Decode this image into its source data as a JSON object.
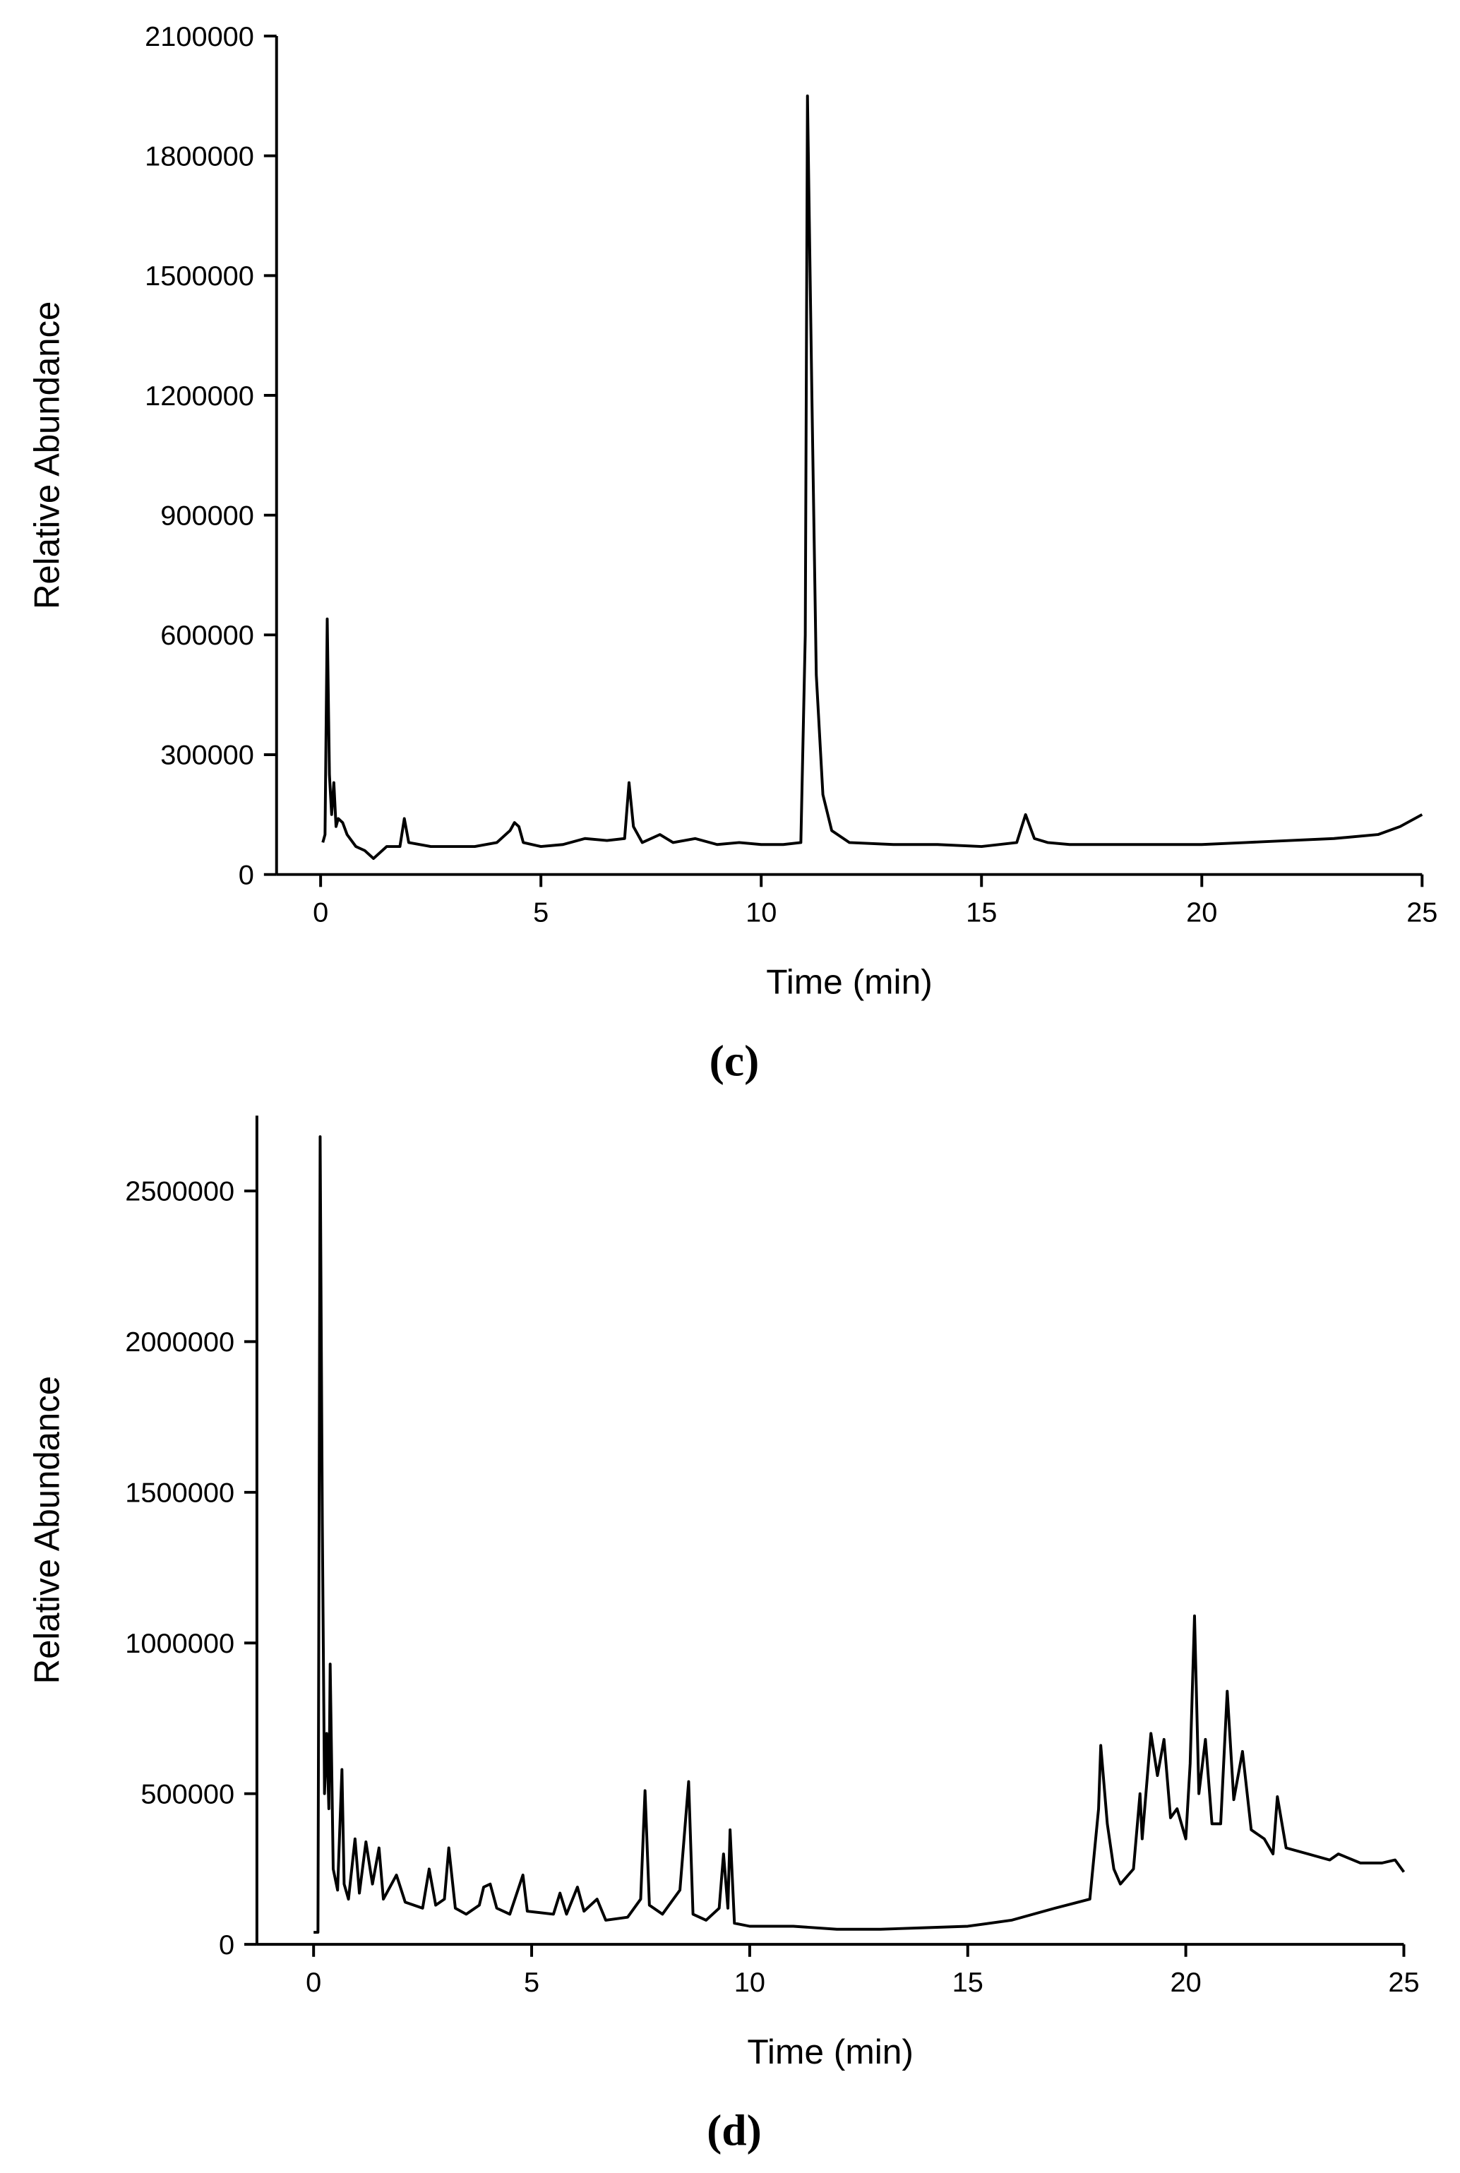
{
  "chart_data": [
    {
      "type": "line",
      "caption": "(c)",
      "xlabel": "Time (min)",
      "ylabel": "Relative Abundance",
      "xlim": [
        -1,
        25
      ],
      "ylim": [
        0,
        2100000
      ],
      "xticks": [
        0,
        5,
        10,
        15,
        20,
        25
      ],
      "yticks": [
        0,
        300000,
        600000,
        900000,
        1200000,
        1500000,
        1800000,
        2100000
      ],
      "x": [
        0.05,
        0.1,
        0.15,
        0.2,
        0.25,
        0.3,
        0.35,
        0.4,
        0.5,
        0.6,
        0.8,
        1.0,
        1.2,
        1.5,
        1.8,
        1.9,
        2.0,
        2.5,
        3,
        3.5,
        4,
        4.3,
        4.4,
        4.5,
        4.6,
        5,
        5.5,
        6,
        6.5,
        6.9,
        7.0,
        7.1,
        7.3,
        7.7,
        8,
        8.5,
        9,
        9.5,
        10,
        10.5,
        10.9,
        11.0,
        11.05,
        11.15,
        11.25,
        11.4,
        11.6,
        12,
        13,
        14,
        15,
        15.8,
        16.0,
        16.2,
        16.5,
        17,
        18,
        19,
        20,
        21,
        22,
        23,
        24,
        24.5,
        25
      ],
      "series": [
        {
          "color": "#000000",
          "values": [
            80000,
            100000,
            640000,
            250000,
            150000,
            230000,
            120000,
            140000,
            130000,
            100000,
            70000,
            60000,
            40000,
            70000,
            70000,
            140000,
            80000,
            70000,
            70000,
            70000,
            80000,
            110000,
            130000,
            120000,
            80000,
            70000,
            75000,
            90000,
            85000,
            90000,
            230000,
            120000,
            80000,
            100000,
            80000,
            90000,
            75000,
            80000,
            75000,
            75000,
            80000,
            600000,
            1950000,
            1200000,
            500000,
            200000,
            110000,
            80000,
            75000,
            75000,
            70000,
            80000,
            150000,
            90000,
            80000,
            75000,
            75000,
            75000,
            75000,
            80000,
            85000,
            90000,
            100000,
            120000,
            150000
          ]
        }
      ]
    },
    {
      "type": "line",
      "caption": "(d)",
      "xlabel": "Time (min)",
      "ylabel": "Relative Abundance",
      "xlim": [
        -1.3,
        25
      ],
      "ylim": [
        0,
        2750000
      ],
      "xticks": [
        0,
        5,
        10,
        15,
        20,
        25
      ],
      "yticks": [
        0,
        500000,
        1000000,
        1500000,
        2000000,
        2500000
      ],
      "x": [
        0,
        0.1,
        0.15,
        0.2,
        0.25,
        0.3,
        0.35,
        0.38,
        0.45,
        0.55,
        0.65,
        0.7,
        0.8,
        0.95,
        1.05,
        1.2,
        1.35,
        1.5,
        1.6,
        1.9,
        2.1,
        2.5,
        2.65,
        2.8,
        3.0,
        3.1,
        3.25,
        3.5,
        3.8,
        3.9,
        4.05,
        4.2,
        4.5,
        4.8,
        4.9,
        5.5,
        5.65,
        5.8,
        6.05,
        6.2,
        6.5,
        6.7,
        7.2,
        7.5,
        7.6,
        7.7,
        8,
        8.4,
        8.6,
        8.7,
        9.0,
        9.3,
        9.4,
        9.5,
        9.55,
        9.65,
        10,
        11,
        12,
        13,
        14,
        15,
        16,
        17,
        17.8,
        18.0,
        18.05,
        18.2,
        18.35,
        18.5,
        18.8,
        18.95,
        19.0,
        19.2,
        19.35,
        19.5,
        19.65,
        19.8,
        20.0,
        20.1,
        20.2,
        20.3,
        20.45,
        20.6,
        20.8,
        20.95,
        21.1,
        21.3,
        21.5,
        21.8,
        22.0,
        22.1,
        22.3,
        22.8,
        23.3,
        23.5,
        24,
        24.5,
        24.8,
        25
      ],
      "series": [
        {
          "color": "#000000",
          "values": [
            40000,
            40000,
            2680000,
            1400000,
            500000,
            700000,
            450000,
            930000,
            250000,
            180000,
            580000,
            200000,
            150000,
            350000,
            170000,
            340000,
            200000,
            320000,
            150000,
            230000,
            140000,
            120000,
            250000,
            130000,
            150000,
            320000,
            120000,
            100000,
            130000,
            190000,
            200000,
            120000,
            100000,
            230000,
            110000,
            100000,
            170000,
            100000,
            190000,
            110000,
            150000,
            80000,
            90000,
            150000,
            510000,
            130000,
            100000,
            180000,
            540000,
            100000,
            80000,
            120000,
            300000,
            120000,
            380000,
            70000,
            60000,
            60000,
            50000,
            50000,
            55000,
            60000,
            80000,
            120000,
            150000,
            450000,
            660000,
            400000,
            250000,
            200000,
            250000,
            500000,
            350000,
            700000,
            560000,
            680000,
            420000,
            450000,
            350000,
            600000,
            1090000,
            500000,
            680000,
            400000,
            400000,
            840000,
            480000,
            640000,
            380000,
            350000,
            300000,
            490000,
            320000,
            300000,
            280000,
            300000,
            270000,
            270000,
            280000,
            240000
          ]
        }
      ]
    }
  ]
}
